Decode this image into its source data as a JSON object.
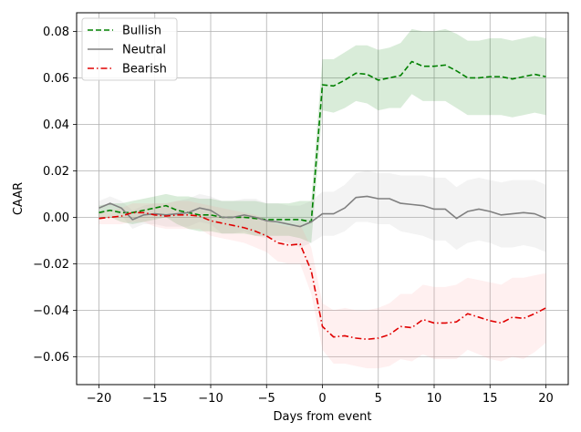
{
  "chart_data": {
    "type": "line",
    "xlabel": "Days from event",
    "ylabel": "CAAR",
    "xlim": [
      -22,
      22
    ],
    "ylim": [
      -0.072,
      0.088
    ],
    "xticks": [
      -20,
      -15,
      -10,
      -5,
      0,
      5,
      10,
      15,
      20
    ],
    "yticks": [
      -0.06,
      -0.04,
      -0.02,
      0.0,
      0.02,
      0.04,
      0.06,
      0.08
    ],
    "xtick_labels": [
      "−20",
      "−15",
      "−10",
      "−5",
      "0",
      "5",
      "10",
      "15",
      "20"
    ],
    "ytick_labels": [
      "−0.06",
      "−0.04",
      "−0.02",
      "0.00",
      "0.02",
      "0.04",
      "0.06",
      "0.08"
    ],
    "grid": true,
    "legend_position": "top-left",
    "x": [
      -20,
      -19,
      -18,
      -17,
      -16,
      -15,
      -14,
      -13,
      -12,
      -11,
      -10,
      -9,
      -8,
      -7,
      -6,
      -5,
      -4,
      -3,
      -2,
      -1,
      0,
      1,
      2,
      3,
      4,
      5,
      6,
      7,
      8,
      9,
      10,
      11,
      12,
      13,
      14,
      15,
      16,
      17,
      18,
      19,
      20
    ],
    "series": [
      {
        "name": "Bullish",
        "color": "#008000",
        "band_color": "#008000",
        "dash": "dashed",
        "values": [
          0.002,
          0.003,
          0.002,
          0.002,
          0.003,
          0.004,
          0.005,
          0.003,
          0.002,
          0.001,
          0.001,
          0.0,
          0.0,
          0.0,
          -0.0005,
          -0.001,
          -0.001,
          -0.001,
          -0.001,
          -0.002,
          0.057,
          0.0565,
          0.059,
          0.062,
          0.0615,
          0.059,
          0.06,
          0.061,
          0.067,
          0.065,
          0.065,
          0.0655,
          0.063,
          0.06,
          0.06,
          0.0605,
          0.0605,
          0.0595,
          0.0605,
          0.0615,
          0.0605
        ],
        "upper": [
          0.005,
          0.006,
          0.006,
          0.007,
          0.008,
          0.009,
          0.01,
          0.009,
          0.009,
          0.008,
          0.008,
          0.007,
          0.007,
          0.007,
          0.007,
          0.006,
          0.006,
          0.006,
          0.007,
          0.007,
          0.068,
          0.068,
          0.071,
          0.074,
          0.074,
          0.072,
          0.073,
          0.075,
          0.081,
          0.08,
          0.08,
          0.081,
          0.079,
          0.076,
          0.076,
          0.077,
          0.077,
          0.076,
          0.077,
          0.078,
          0.077
        ],
        "lower": [
          -0.001,
          0.0,
          -0.002,
          -0.003,
          -0.002,
          -0.001,
          0.0,
          -0.003,
          -0.005,
          -0.006,
          -0.006,
          -0.007,
          -0.007,
          -0.007,
          -0.008,
          -0.008,
          -0.008,
          -0.008,
          -0.009,
          -0.011,
          0.046,
          0.045,
          0.047,
          0.05,
          0.049,
          0.046,
          0.047,
          0.047,
          0.053,
          0.05,
          0.05,
          0.05,
          0.047,
          0.044,
          0.044,
          0.044,
          0.044,
          0.043,
          0.044,
          0.045,
          0.044
        ]
      },
      {
        "name": "Neutral",
        "color": "#808080",
        "band_color": "#b0b0b0",
        "dash": "solid",
        "values": [
          0.004,
          0.006,
          0.004,
          -0.001,
          0.001,
          0.0015,
          0.001,
          0.0015,
          0.002,
          0.004,
          0.003,
          0.0,
          0.0,
          0.001,
          0.0,
          -0.0015,
          -0.002,
          -0.003,
          -0.004,
          -0.002,
          0.0015,
          0.0015,
          0.004,
          0.0085,
          0.009,
          0.008,
          0.008,
          0.006,
          0.0055,
          0.005,
          0.0035,
          0.0035,
          -0.0005,
          0.0025,
          0.0035,
          0.0025,
          0.001,
          0.0015,
          0.002,
          0.0015,
          -0.0005
        ],
        "upper": [
          0.007,
          0.009,
          0.007,
          0.003,
          0.005,
          0.006,
          0.006,
          0.007,
          0.008,
          0.01,
          0.009,
          0.007,
          0.007,
          0.008,
          0.008,
          0.006,
          0.006,
          0.005,
          0.005,
          0.007,
          0.011,
          0.011,
          0.014,
          0.019,
          0.02,
          0.019,
          0.019,
          0.018,
          0.018,
          0.018,
          0.017,
          0.017,
          0.013,
          0.016,
          0.017,
          0.016,
          0.015,
          0.016,
          0.016,
          0.016,
          0.014
        ],
        "lower": [
          0.001,
          0.003,
          0.001,
          -0.005,
          -0.003,
          -0.003,
          -0.004,
          -0.004,
          -0.004,
          -0.002,
          -0.003,
          -0.007,
          -0.007,
          -0.006,
          -0.008,
          -0.009,
          -0.01,
          -0.011,
          -0.013,
          -0.011,
          -0.008,
          -0.008,
          -0.006,
          -0.002,
          -0.002,
          -0.003,
          -0.003,
          -0.006,
          -0.007,
          -0.008,
          -0.01,
          -0.01,
          -0.014,
          -0.011,
          -0.01,
          -0.011,
          -0.013,
          -0.013,
          -0.012,
          -0.013,
          -0.015
        ]
      },
      {
        "name": "Bearish",
        "color": "#e00000",
        "band_color": "#ff9999",
        "dash": "dashdot",
        "values": [
          -0.0005,
          0.0,
          0.0005,
          0.002,
          0.002,
          0.001,
          0.0005,
          0.001,
          0.001,
          0.0005,
          -0.0015,
          -0.0025,
          -0.0035,
          -0.0045,
          -0.006,
          -0.008,
          -0.011,
          -0.012,
          -0.0115,
          -0.023,
          -0.047,
          -0.0515,
          -0.051,
          -0.052,
          -0.0525,
          -0.052,
          -0.0505,
          -0.047,
          -0.0475,
          -0.044,
          -0.0455,
          -0.0455,
          -0.045,
          -0.0415,
          -0.043,
          -0.0445,
          -0.0455,
          -0.043,
          -0.0435,
          -0.0415,
          -0.039
        ],
        "upper": [
          0.002,
          0.003,
          0.004,
          0.006,
          0.006,
          0.006,
          0.006,
          0.007,
          0.007,
          0.006,
          0.005,
          0.004,
          0.003,
          0.002,
          0.001,
          -0.001,
          -0.003,
          -0.004,
          -0.003,
          -0.013,
          -0.037,
          -0.04,
          -0.039,
          -0.04,
          -0.04,
          -0.039,
          -0.037,
          -0.033,
          -0.033,
          -0.029,
          -0.03,
          -0.03,
          -0.029,
          -0.026,
          -0.027,
          -0.028,
          -0.029,
          -0.026,
          -0.026,
          -0.025,
          -0.024
        ],
        "lower": [
          -0.003,
          -0.003,
          -0.003,
          -0.002,
          -0.002,
          -0.004,
          -0.005,
          -0.005,
          -0.005,
          -0.005,
          -0.008,
          -0.009,
          -0.01,
          -0.011,
          -0.013,
          -0.015,
          -0.019,
          -0.02,
          -0.02,
          -0.033,
          -0.057,
          -0.063,
          -0.063,
          -0.064,
          -0.065,
          -0.065,
          -0.064,
          -0.061,
          -0.062,
          -0.059,
          -0.061,
          -0.061,
          -0.061,
          -0.057,
          -0.059,
          -0.061,
          -0.062,
          -0.06,
          -0.061,
          -0.058,
          -0.054
        ]
      }
    ]
  }
}
